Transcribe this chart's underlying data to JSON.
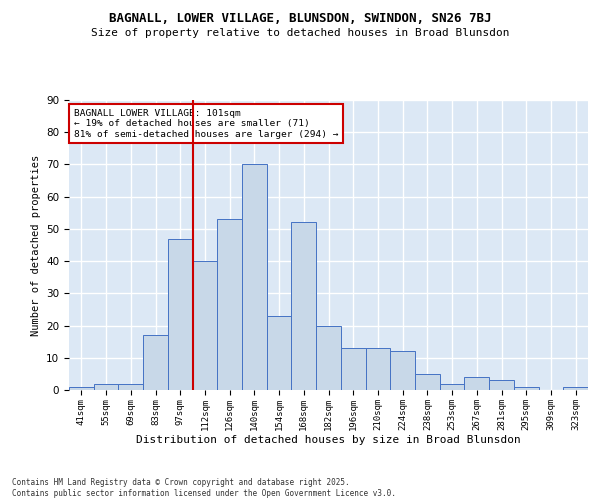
{
  "title": "BAGNALL, LOWER VILLAGE, BLUNSDON, SWINDON, SN26 7BJ",
  "subtitle": "Size of property relative to detached houses in Broad Blunsdon",
  "xlabel": "Distribution of detached houses by size in Broad Blunsdon",
  "ylabel": "Number of detached properties",
  "categories": [
    "41sqm",
    "55sqm",
    "69sqm",
    "83sqm",
    "97sqm",
    "112sqm",
    "126sqm",
    "140sqm",
    "154sqm",
    "168sqm",
    "182sqm",
    "196sqm",
    "210sqm",
    "224sqm",
    "238sqm",
    "253sqm",
    "267sqm",
    "281sqm",
    "295sqm",
    "309sqm",
    "323sqm"
  ],
  "values": [
    1,
    2,
    2,
    17,
    47,
    40,
    53,
    70,
    23,
    52,
    20,
    13,
    13,
    12,
    5,
    2,
    4,
    3,
    1,
    0,
    1
  ],
  "bar_color": "#c8d8e8",
  "bar_edge_color": "#4472c4",
  "vline_x_index": 4.5,
  "vline_color": "#cc0000",
  "annotation_text": "BAGNALL LOWER VILLAGE: 101sqm\n← 19% of detached houses are smaller (71)\n81% of semi-detached houses are larger (294) →",
  "annotation_box_color": "#ffffff",
  "annotation_box_edge": "#cc0000",
  "background_color": "#dce8f5",
  "grid_color": "#ffffff",
  "footnote": "Contains HM Land Registry data © Crown copyright and database right 2025.\nContains public sector information licensed under the Open Government Licence v3.0.",
  "ylim": [
    0,
    90
  ],
  "yticks": [
    0,
    10,
    20,
    30,
    40,
    50,
    60,
    70,
    80,
    90
  ],
  "title_fontsize": 9,
  "subtitle_fontsize": 8.5
}
